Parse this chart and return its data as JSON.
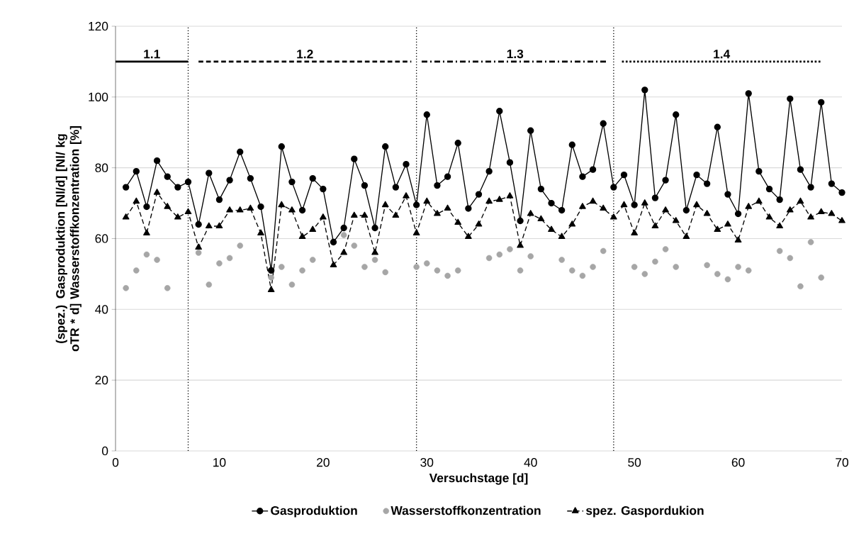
{
  "chart_data": {
    "type": "line",
    "xlabel": "Versuchstage [d]",
    "ylabel": "(spez.) Gasproduktion [Nl/d]  [Nl/ kg oTR * d] Wasserstoffkonzentration [%]",
    "x": [
      1,
      2,
      3,
      4,
      5,
      6,
      7,
      8,
      9,
      10,
      11,
      12,
      13,
      14,
      15,
      16,
      17,
      18,
      19,
      20,
      21,
      22,
      23,
      24,
      25,
      26,
      27,
      28,
      29,
      30,
      31,
      32,
      33,
      34,
      35,
      36,
      37,
      38,
      39,
      40,
      41,
      42,
      43,
      44,
      45,
      46,
      47,
      48,
      49,
      50,
      51,
      52,
      53,
      54,
      55,
      56,
      57,
      58,
      59,
      60,
      61,
      62,
      63,
      64,
      65,
      66,
      67,
      68,
      69,
      70
    ],
    "series": [
      {
        "name": "Gasproduktion",
        "color": "#000000",
        "marker": "circle",
        "line_style": "solid",
        "values": [
          74.5,
          79,
          69,
          82,
          77.5,
          74.5,
          76,
          64,
          78.5,
          71,
          76.5,
          84.5,
          77,
          69,
          51,
          86,
          76,
          68,
          77,
          74,
          59,
          63,
          82.5,
          75,
          63,
          86,
          74.5,
          81,
          69.5,
          95,
          75,
          77.5,
          87,
          68.5,
          72.5,
          79,
          96,
          81.5,
          65,
          90.5,
          74,
          70,
          68,
          86.5,
          77.5,
          79.5,
          92.5,
          74.5,
          78,
          69.5,
          102,
          71.5,
          76.5,
          95,
          68,
          78,
          75.5,
          91.5,
          72.5,
          67,
          101,
          79,
          74,
          71,
          99.5,
          79.5,
          74.5,
          98.5,
          75.5,
          73
        ]
      },
      {
        "name": "Wasserstoffkonzentration",
        "type": "scatter",
        "color": "#a6a6a6",
        "marker": "circle",
        "values": [
          46,
          51,
          55.5,
          54,
          46,
          null,
          null,
          56,
          47,
          53,
          54.5,
          58,
          null,
          null,
          49,
          52,
          47,
          51,
          54,
          null,
          null,
          61,
          58,
          52,
          54,
          50.5,
          null,
          null,
          52,
          53,
          51,
          49.5,
          51,
          null,
          null,
          54.5,
          55.5,
          57,
          51,
          55,
          null,
          null,
          54,
          51,
          49.5,
          52,
          56.5,
          null,
          null,
          52,
          50,
          53.5,
          57,
          52,
          null,
          null,
          52.5,
          50,
          48.5,
          52,
          51,
          null,
          null,
          56.5,
          54.5,
          46.5,
          59,
          49,
          null,
          null
        ]
      },
      {
        "name": "spez. Gaspordukion",
        "color": "#000000",
        "marker": "triangle",
        "line_style": "dashed",
        "values": [
          66,
          70.5,
          61.5,
          73,
          69,
          66,
          67.5,
          57.5,
          63.5,
          63.5,
          68,
          68,
          68.5,
          61.5,
          45.5,
          69.5,
          68,
          60.5,
          62.5,
          66,
          52.5,
          56,
          66.5,
          66.5,
          56,
          69.5,
          66.5,
          72,
          61.5,
          70.5,
          67,
          68.5,
          64.5,
          60.5,
          64,
          70.5,
          71,
          72,
          58,
          67,
          65.5,
          62.5,
          60.5,
          64,
          69,
          70.5,
          68.5,
          66,
          69.5,
          61.5,
          70,
          63.5,
          68,
          65,
          60.5,
          69.5,
          67,
          62.5,
          64,
          59.5,
          69,
          70.5,
          66,
          63.5,
          68,
          70.5,
          66,
          67.5,
          67,
          65
        ]
      },
      {
        "color": "#000000",
        "marker": "none",
        "line_style": "solid",
        "x": [
          0,
          7
        ],
        "values": [
          110,
          110
        ]
      },
      {
        "color": "#000000",
        "marker": "none",
        "line_style": "dashed",
        "x": [
          8,
          28.5
        ],
        "values": [
          110,
          110
        ]
      },
      {
        "color": "#000000",
        "marker": "none",
        "line_style": "dashdot",
        "x": [
          29.5,
          47.5
        ],
        "values": [
          110,
          110
        ]
      },
      {
        "color": "#000000",
        "marker": "none",
        "line_style": "dotted",
        "x": [
          48.8,
          68
        ],
        "values": [
          110,
          110
        ]
      }
    ],
    "annotations": [
      "1.1",
      "1.2",
      "1.3",
      "1.4"
    ],
    "ref_lines": [
      {
        "axis": "x",
        "value": 7,
        "color": "#000000",
        "line_style": "dotted"
      },
      {
        "axis": "x",
        "value": 29,
        "color": "#000000",
        "line_style": "dotted"
      },
      {
        "axis": "x",
        "value": 48,
        "color": "#000000",
        "line_style": "dotted"
      }
    ],
    "xlim": [
      0,
      70
    ],
    "ylim": [
      0,
      120
    ],
    "xticks": [
      0,
      10,
      20,
      30,
      40,
      50,
      60,
      70
    ],
    "yticks": [
      0,
      20,
      40,
      60,
      80,
      100,
      120
    ],
    "grid": "y",
    "legend": "bottom"
  }
}
